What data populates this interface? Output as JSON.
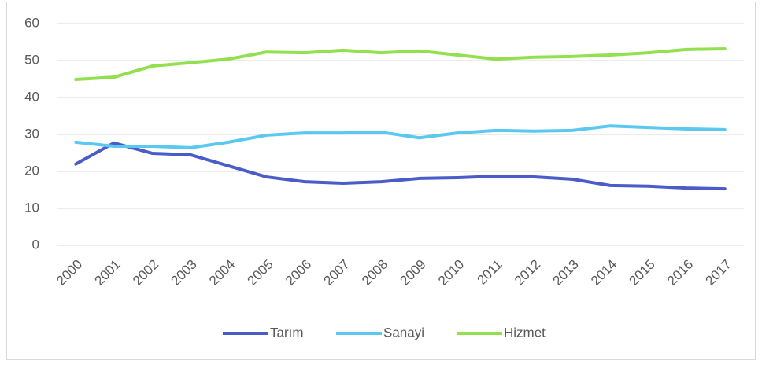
{
  "chart_data": {
    "type": "line",
    "categories": [
      "2000",
      "2001",
      "2002",
      "2003",
      "2004",
      "2005",
      "2006",
      "2007",
      "2008",
      "2009",
      "2010",
      "2011",
      "2012",
      "2013",
      "2014",
      "2015",
      "2016",
      "2017"
    ],
    "series": [
      {
        "name": "Tarım",
        "color": "#4a5cc8",
        "values": [
          22,
          27.7,
          24.9,
          24.5,
          21.5,
          18.5,
          17.2,
          16.8,
          17.2,
          18.1,
          18.3,
          18.7,
          18.5,
          17.9,
          16.2,
          16.0,
          15.5,
          15.3
        ]
      },
      {
        "name": "Sanayi",
        "color": "#5bc8f0",
        "values": [
          27.9,
          26.8,
          26.8,
          26.4,
          27.9,
          29.8,
          30.4,
          30.4,
          30.6,
          29.1,
          30.4,
          31.1,
          30.9,
          31.1,
          32.3,
          31.9,
          31.5,
          31.3
        ]
      },
      {
        "name": "Hizmet",
        "color": "#92e04f",
        "values": [
          44.9,
          45.5,
          48.5,
          49.4,
          50.4,
          52.3,
          52.1,
          52.8,
          52.1,
          52.6,
          51.5,
          50.4,
          50.9,
          51.1,
          51.5,
          52.1,
          53.0,
          53.2
        ]
      }
    ],
    "ylim": [
      0,
      60
    ],
    "yticks": [
      0,
      10,
      20,
      30,
      40,
      50,
      60
    ],
    "grid": true,
    "legend": "bottom"
  }
}
